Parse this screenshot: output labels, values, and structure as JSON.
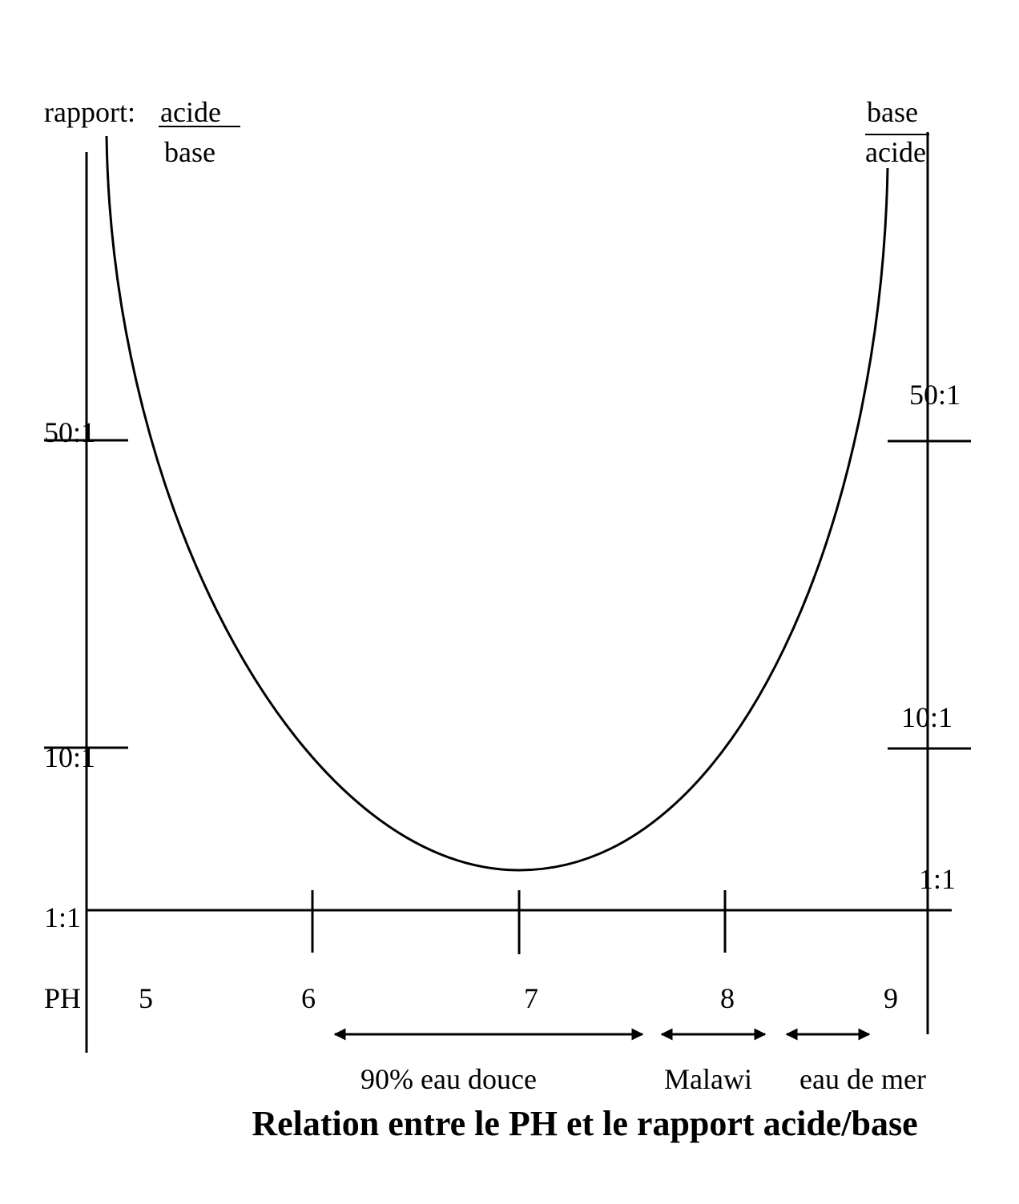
{
  "left_axis": {
    "heading": "rapport:",
    "numerator": "acide",
    "denominator": "base",
    "ticks": [
      "50:1",
      "10:1",
      "1:1"
    ]
  },
  "right_axis": {
    "numerator": "base",
    "denominator": "acide",
    "ticks": [
      "50:1",
      "10:1",
      "1:1"
    ]
  },
  "x_axis": {
    "label": "PH",
    "ticks": [
      "5",
      "6",
      "7",
      "8",
      "9"
    ]
  },
  "ranges": [
    "90% eau douce",
    "Malawi",
    "eau de mer"
  ],
  "title": "Relation entre le PH et le rapport acide/base"
}
